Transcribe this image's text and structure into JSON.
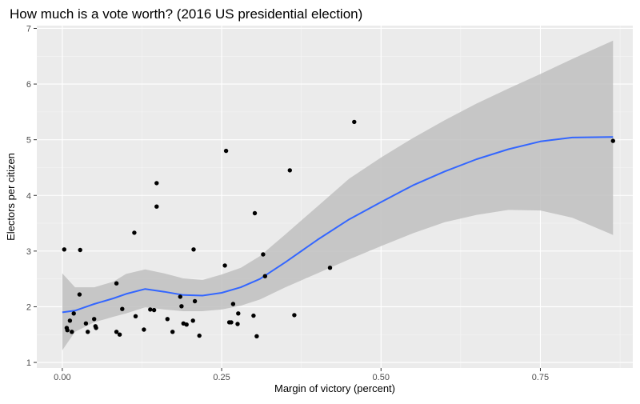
{
  "chart_data": {
    "type": "scatter",
    "title": "How much is a vote worth? (2016 US presidential election)",
    "xlabel": "Margin of victory (percent)",
    "ylabel": "Electors per citizen",
    "xlim": [
      -0.04,
      0.895
    ],
    "ylim": [
      0.9,
      7.05
    ],
    "x_ticks": [
      0.0,
      0.25,
      0.5,
      0.75
    ],
    "x_tick_labels": [
      "0.00",
      "0.25",
      "0.50",
      "0.75"
    ],
    "y_ticks": [
      1,
      2,
      3,
      4,
      5,
      6,
      7
    ],
    "y_tick_labels": [
      "1",
      "2",
      "3",
      "4",
      "5",
      "6",
      "7"
    ],
    "grid": true,
    "legend": "none",
    "colors": {
      "panel_background": "#ebebeb",
      "grid_major": "#ffffff",
      "grid_minor": "#f5f5f5",
      "points": "#000000",
      "smooth_line": "#3366ff",
      "confidence_band": "#bfbfbf"
    },
    "points": {
      "x": [
        0.003,
        0.007,
        0.008,
        0.012,
        0.015,
        0.018,
        0.027,
        0.028,
        0.037,
        0.04,
        0.05,
        0.052,
        0.053,
        0.085,
        0.085,
        0.09,
        0.094,
        0.113,
        0.115,
        0.128,
        0.138,
        0.144,
        0.148,
        0.148,
        0.165,
        0.173,
        0.185,
        0.187,
        0.19,
        0.195,
        0.205,
        0.206,
        0.208,
        0.215,
        0.255,
        0.257,
        0.262,
        0.265,
        0.268,
        0.275,
        0.276,
        0.3,
        0.302,
        0.305,
        0.315,
        0.318,
        0.357,
        0.364,
        0.42,
        0.458,
        0.864
      ],
      "y": [
        3.03,
        1.62,
        1.58,
        1.75,
        1.55,
        1.88,
        2.22,
        3.02,
        1.7,
        1.55,
        1.78,
        1.65,
        1.62,
        2.42,
        1.55,
        1.5,
        1.96,
        3.33,
        1.83,
        1.59,
        1.95,
        1.94,
        3.8,
        4.22,
        1.78,
        1.55,
        2.18,
        2.01,
        1.7,
        1.68,
        1.75,
        3.03,
        2.1,
        1.48,
        2.74,
        4.8,
        1.72,
        1.72,
        2.05,
        1.69,
        1.88,
        1.84,
        3.68,
        1.47,
        2.94,
        2.55,
        4.45,
        1.85,
        2.7,
        5.32,
        4.98
      ]
    },
    "smooth": {
      "x": [
        0.0,
        0.02,
        0.05,
        0.08,
        0.1,
        0.13,
        0.16,
        0.19,
        0.22,
        0.25,
        0.28,
        0.31,
        0.35,
        0.4,
        0.45,
        0.5,
        0.55,
        0.6,
        0.65,
        0.7,
        0.75,
        0.8,
        0.864
      ],
      "y": [
        1.9,
        1.93,
        2.05,
        2.15,
        2.23,
        2.32,
        2.27,
        2.21,
        2.2,
        2.25,
        2.35,
        2.5,
        2.8,
        3.2,
        3.57,
        3.88,
        4.18,
        4.43,
        4.65,
        4.83,
        4.97,
        5.04,
        5.05
      ],
      "lower": [
        1.22,
        1.55,
        1.72,
        1.82,
        1.88,
        1.99,
        1.95,
        1.92,
        1.92,
        1.95,
        2.02,
        2.13,
        2.35,
        2.6,
        2.85,
        3.09,
        3.32,
        3.52,
        3.65,
        3.74,
        3.73,
        3.6,
        3.29
      ],
      "upper": [
        2.6,
        2.35,
        2.35,
        2.45,
        2.59,
        2.67,
        2.6,
        2.51,
        2.48,
        2.58,
        2.7,
        2.91,
        3.3,
        3.8,
        4.3,
        4.68,
        5.03,
        5.35,
        5.65,
        5.92,
        6.18,
        6.45,
        6.78
      ]
    }
  }
}
